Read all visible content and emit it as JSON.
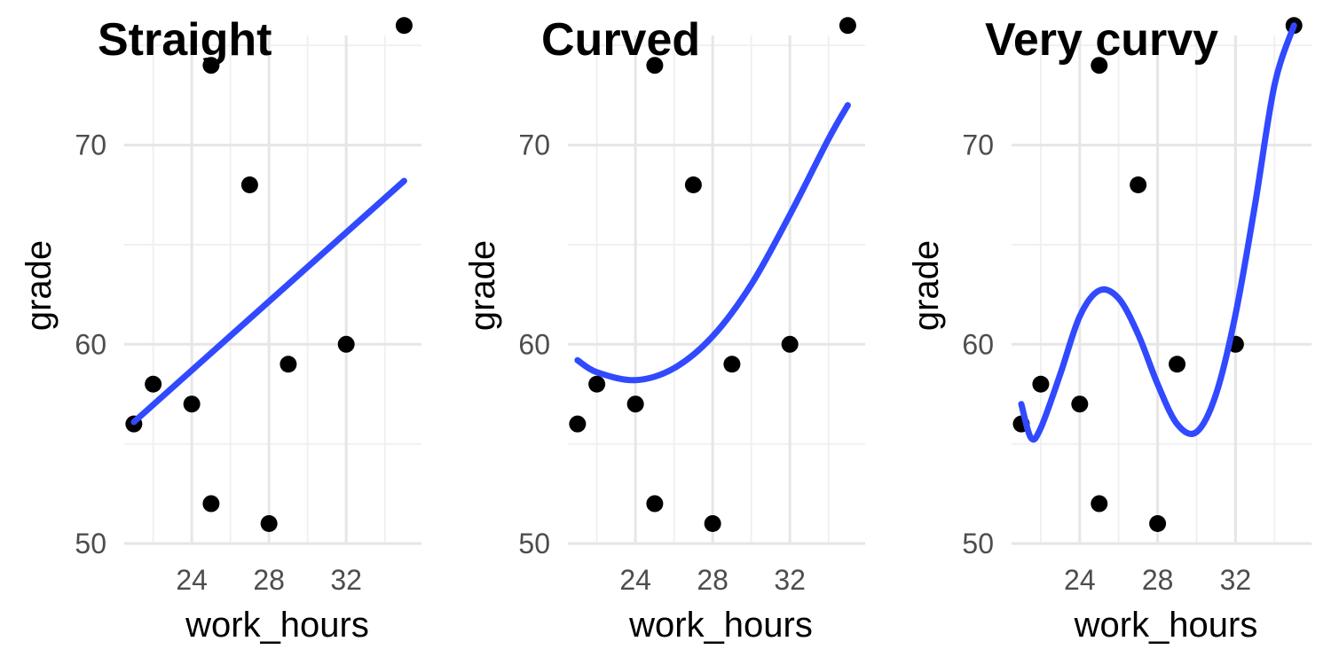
{
  "chart_data": [
    {
      "type": "scatter",
      "title": "Straight",
      "xlabel": "work_hours",
      "ylabel": "grade",
      "xlim": [
        20.5,
        35.9
      ],
      "ylim": [
        50,
        75.5
      ],
      "xticks": [
        24,
        28,
        32
      ],
      "yticks": [
        50,
        60,
        70
      ],
      "grid": true,
      "points": [
        {
          "x": 21,
          "y": 56
        },
        {
          "x": 22,
          "y": 58
        },
        {
          "x": 24,
          "y": 57
        },
        {
          "x": 25,
          "y": 74
        },
        {
          "x": 25,
          "y": 52
        },
        {
          "x": 27,
          "y": 68
        },
        {
          "x": 28,
          "y": 51
        },
        {
          "x": 29,
          "y": 59
        },
        {
          "x": 32,
          "y": 60
        },
        {
          "x": 35,
          "y": 76
        }
      ],
      "fit": {
        "kind": "linear",
        "curve": [
          [
            21,
            56.1
          ],
          [
            35,
            68.2
          ]
        ]
      },
      "point_color": "#000000",
      "line_color": "#3149ff"
    },
    {
      "type": "scatter",
      "title": "Curved",
      "xlabel": "work_hours",
      "ylabel": "grade",
      "xlim": [
        20.5,
        35.9
      ],
      "ylim": [
        50,
        75.5
      ],
      "xticks": [
        24,
        28,
        32
      ],
      "yticks": [
        50,
        60,
        70
      ],
      "grid": true,
      "points": [
        {
          "x": 21,
          "y": 56
        },
        {
          "x": 22,
          "y": 58
        },
        {
          "x": 24,
          "y": 57
        },
        {
          "x": 25,
          "y": 74
        },
        {
          "x": 25,
          "y": 52
        },
        {
          "x": 27,
          "y": 68
        },
        {
          "x": 28,
          "y": 51
        },
        {
          "x": 29,
          "y": 59
        },
        {
          "x": 32,
          "y": 60
        },
        {
          "x": 35,
          "y": 76
        }
      ],
      "fit": {
        "kind": "quadratic",
        "curve": [
          [
            21,
            59.2
          ],
          [
            22,
            58.6
          ],
          [
            24,
            58.2
          ],
          [
            26,
            58.8
          ],
          [
            28,
            60.4
          ],
          [
            30,
            63.0
          ],
          [
            32,
            66.5
          ],
          [
            34,
            70.3
          ],
          [
            35,
            72.0
          ]
        ]
      },
      "point_color": "#000000",
      "line_color": "#3149ff"
    },
    {
      "type": "scatter",
      "title": "Very curvy",
      "xlabel": "work_hours",
      "ylabel": "grade",
      "xlim": [
        20.5,
        35.9
      ],
      "ylim": [
        50,
        75.5
      ],
      "xticks": [
        24,
        28,
        32
      ],
      "yticks": [
        50,
        60,
        70
      ],
      "grid": true,
      "points": [
        {
          "x": 21,
          "y": 56
        },
        {
          "x": 22,
          "y": 58
        },
        {
          "x": 24,
          "y": 57
        },
        {
          "x": 25,
          "y": 74
        },
        {
          "x": 25,
          "y": 52
        },
        {
          "x": 27,
          "y": 68
        },
        {
          "x": 28,
          "y": 51
        },
        {
          "x": 29,
          "y": 59
        },
        {
          "x": 32,
          "y": 60
        },
        {
          "x": 35,
          "y": 76
        }
      ],
      "fit": {
        "kind": "polynomial",
        "curve": [
          [
            21,
            57.0
          ],
          [
            21.5,
            55.3
          ],
          [
            22,
            55.8
          ],
          [
            23,
            58.5
          ],
          [
            24,
            61.4
          ],
          [
            25,
            62.7
          ],
          [
            26,
            62.3
          ],
          [
            27,
            60.5
          ],
          [
            28,
            58.0
          ],
          [
            29,
            56.0
          ],
          [
            30,
            55.6
          ],
          [
            31,
            57.5
          ],
          [
            32,
            61.5
          ],
          [
            33,
            67.0
          ],
          [
            34,
            73.0
          ],
          [
            35,
            76.0
          ]
        ]
      },
      "point_color": "#000000",
      "line_color": "#3149ff"
    }
  ]
}
